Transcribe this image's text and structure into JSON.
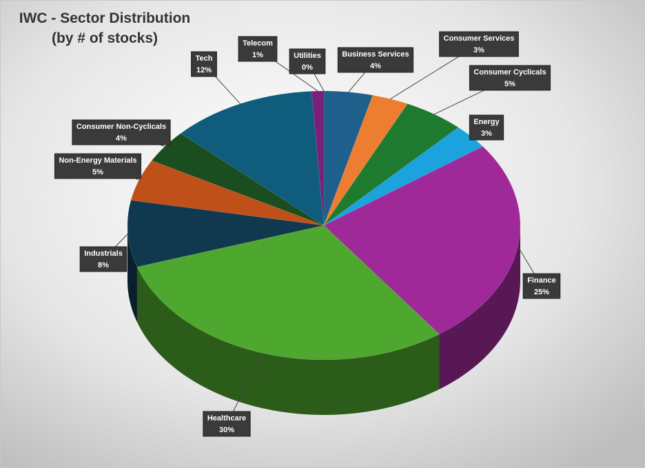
{
  "chart_data": {
    "type": "pie",
    "title": "IWC - Sector Distribution",
    "subtitle": "(by # of stocks)",
    "categories": [
      "Utilities",
      "Business Services",
      "Consumer Services",
      "Consumer Cyclicals",
      "Energy",
      "Finance",
      "Healthcare",
      "Industrials",
      "Non-Energy Materials",
      "Consumer Non-Cyclicals",
      "Tech",
      "Telecom"
    ],
    "values": [
      0,
      4,
      3,
      5,
      3,
      25,
      30,
      8,
      5,
      4,
      12,
      1
    ],
    "value_labels": [
      "0%",
      "4%",
      "3%",
      "5%",
      "3%",
      "25%",
      "30%",
      "8%",
      "5%",
      "4%",
      "12%",
      "1%"
    ],
    "colors": [
      "#2e7d32",
      "#1f5f8b",
      "#ed7d31",
      "#1e7a2e",
      "#1aa3dc",
      "#a0299a",
      "#4ea72e",
      "#10384f",
      "#c0501a",
      "#1a4d1f",
      "#0f5c7c",
      "#7a1f7a"
    ]
  }
}
